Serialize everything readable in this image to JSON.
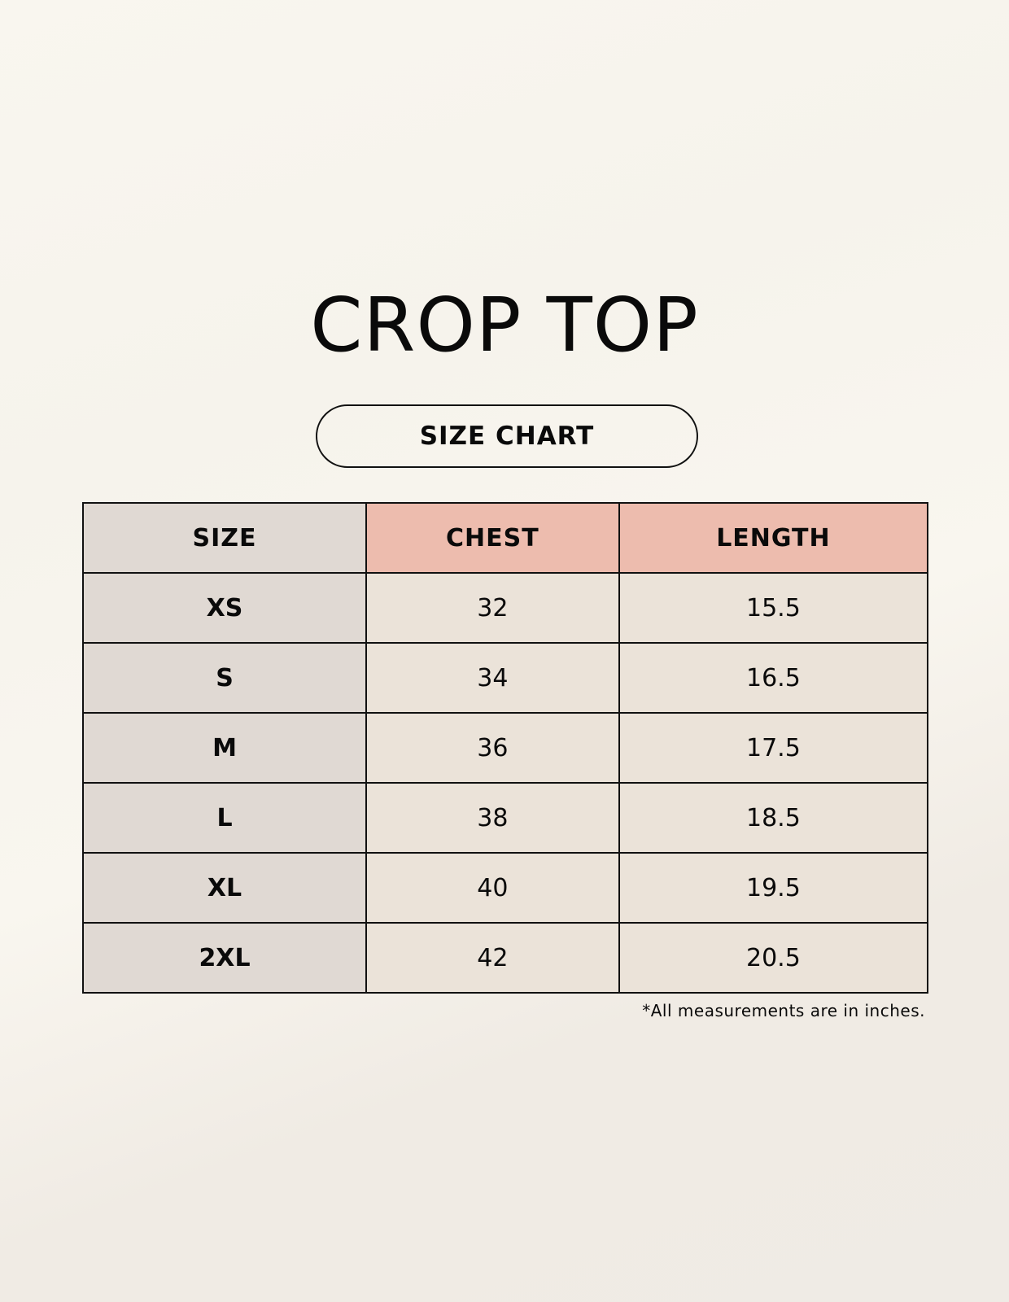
{
  "title": "CROP TOP",
  "subtitle": "SIZE CHART",
  "table": {
    "headers": [
      "SIZE",
      "CHEST",
      "LENGTH"
    ],
    "rows": [
      [
        "XS",
        "32",
        "15.5"
      ],
      [
        "S",
        "34",
        "16.5"
      ],
      [
        "M",
        "36",
        "17.5"
      ],
      [
        "L",
        "38",
        "18.5"
      ],
      [
        "XL",
        "40",
        "19.5"
      ],
      [
        "2XL",
        "42",
        "20.5"
      ]
    ]
  },
  "footnote": "*All measurements are in inches.",
  "colors": {
    "size_column": "#e0d9d3",
    "header_accent": "#edbcae",
    "value_cells": "#ebe3d9"
  }
}
